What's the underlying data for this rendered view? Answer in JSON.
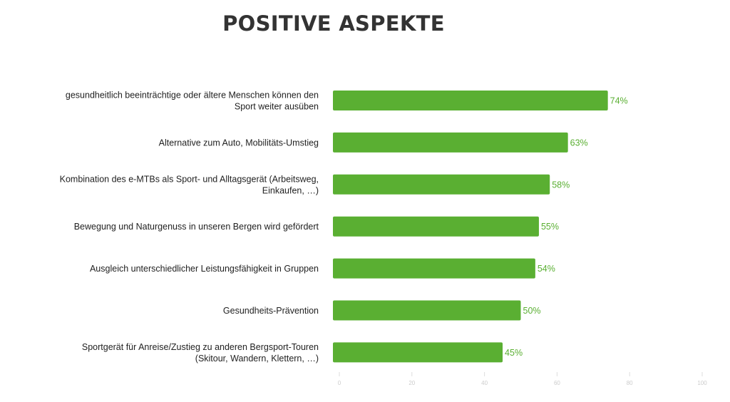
{
  "chart_data": {
    "type": "bar",
    "orientation": "horizontal",
    "title": "POSITIVE ASPEKTE",
    "categories": [
      [
        "gesundheitlich beeinträchtige oder ältere Menschen können den",
        "Sport weiter ausüben"
      ],
      [
        "Alternative zum Auto, Mobilitäts-Umstieg"
      ],
      [
        "Kombination des e-MTBs als Sport- und Alltagsgerät (Arbeitsweg,",
        "Einkaufen, …)"
      ],
      [
        "Bewegung und Naturgenuss in unseren Bergen wird gefördert"
      ],
      [
        "Ausgleich unterschiedlicher Leistungsfähigkeit in Gruppen"
      ],
      [
        "Gesundheits-Prävention"
      ],
      [
        "Sportgerät für Anreise/Zustieg zu anderen Bergsport-Touren",
        "(Skitour, Wandern, Klettern, …)"
      ]
    ],
    "values": [
      74,
      63,
      58,
      55,
      54,
      50,
      45
    ],
    "value_labels": [
      "74%",
      "63%",
      "58%",
      "55%",
      "54%",
      "50%",
      "45%"
    ],
    "xlim": [
      0,
      100
    ],
    "xticks": [
      "0",
      "20",
      "40",
      "60",
      "80",
      "100"
    ],
    "xlabel": "",
    "ylabel": "",
    "grid": false,
    "bar_color": "#5aaf32"
  }
}
